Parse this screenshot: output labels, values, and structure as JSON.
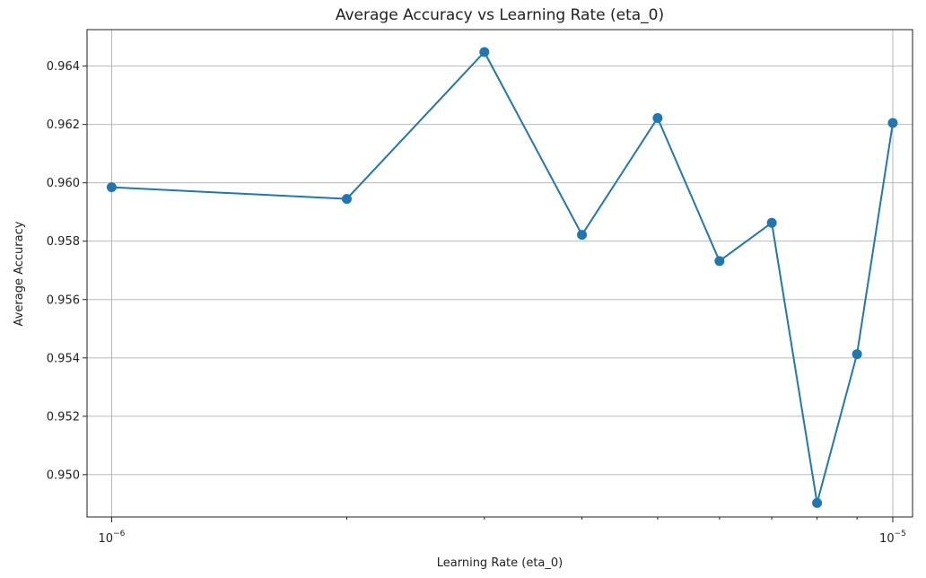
{
  "chart_data": {
    "type": "line",
    "title": "Average Accuracy vs Learning Rate (eta_0)",
    "xlabel": "Learning Rate (eta_0)",
    "ylabel": "Average Accuracy",
    "xscale": "log",
    "xlim": [
      9.3e-07,
      1.06e-05
    ],
    "ylim": [
      0.94855,
      0.96525
    ],
    "grid": true,
    "x_ticks": [
      {
        "value": 1e-06,
        "base": "10",
        "exp": "−6"
      },
      {
        "value": 1e-05,
        "base": "10",
        "exp": "−5"
      }
    ],
    "y_ticks": [
      {
        "value": 0.95,
        "label": "0.950"
      },
      {
        "value": 0.952,
        "label": "0.952"
      },
      {
        "value": 0.954,
        "label": "0.954"
      },
      {
        "value": 0.956,
        "label": "0.956"
      },
      {
        "value": 0.958,
        "label": "0.958"
      },
      {
        "value": 0.96,
        "label": "0.960"
      },
      {
        "value": 0.962,
        "label": "0.962"
      },
      {
        "value": 0.964,
        "label": "0.964"
      }
    ],
    "color": "#1f77b4",
    "series": [
      {
        "points": [
          {
            "x": 1e-06,
            "y": 0.95985
          },
          {
            "x": 2e-06,
            "y": 0.95945
          },
          {
            "x": 3e-06,
            "y": 0.96448
          },
          {
            "x": 4e-06,
            "y": 0.95822
          },
          {
            "x": 5e-06,
            "y": 0.96222
          },
          {
            "x": 6e-06,
            "y": 0.95732
          },
          {
            "x": 7e-06,
            "y": 0.95863
          },
          {
            "x": 8e-06,
            "y": 0.94903
          },
          {
            "x": 9e-06,
            "y": 0.95413
          },
          {
            "x": 1e-05,
            "y": 0.96205
          }
        ]
      }
    ]
  }
}
